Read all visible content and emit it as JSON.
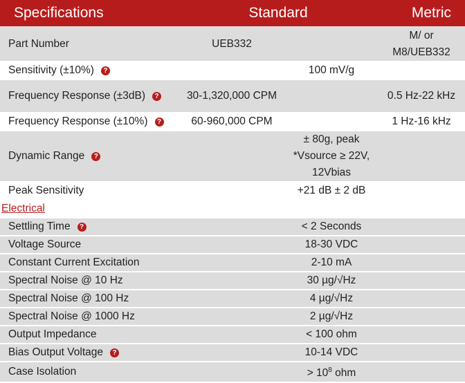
{
  "header": {
    "specifications": "Specifications",
    "standard": "Standard",
    "metric": "Metric"
  },
  "rows": {
    "part_number": {
      "label": "Part Number",
      "standard": "UEB332",
      "metric": "M/ or M8/UEB332"
    },
    "sensitivity": {
      "label": "Sensitivity (±10%)",
      "value": "100 mV/g",
      "help_icon": "question-circle-icon"
    },
    "freq_3db": {
      "label": "Frequency Response (±3dB)",
      "standard": "30-1,320,000 CPM",
      "metric": "0.5 Hz-22 kHz",
      "help_icon": "question-circle-icon"
    },
    "freq_10": {
      "label": "Frequency Response (±10%)",
      "standard": "60-960,000 CPM",
      "metric": "1 Hz-16 kHz",
      "help_icon": "question-circle-icon"
    },
    "dynamic_range": {
      "label": "Dynamic Range",
      "value": "± 80g, peak *Vsource ≥ 22V, 12Vbias",
      "help_icon": "question-circle-icon"
    },
    "peak_sensitivity": {
      "label": "Peak Sensitivity",
      "value": "+21 dB ± 2 dB"
    }
  },
  "section": {
    "electrical": "Electrical"
  },
  "electrical_rows": {
    "settling_time": {
      "label": "Settling Time",
      "value": "< 2 Seconds",
      "help_icon": "question-circle-icon"
    },
    "voltage_source": {
      "label": "Voltage Source",
      "value": "18-30 VDC"
    },
    "constant_current": {
      "label": "Constant Current Excitation",
      "value": "2-10 mA"
    },
    "noise_10": {
      "label": "Spectral Noise @ 10 Hz",
      "value": "30 µg/√Hz"
    },
    "noise_100": {
      "label": "Spectral Noise @ 100 Hz",
      "value": "4 µg/√Hz"
    },
    "noise_1000": {
      "label": "Spectral Noise @ 1000 Hz",
      "value": "2 µg/√Hz"
    },
    "output_impedance": {
      "label": "Output Impedance",
      "value": "< 100 ohm"
    },
    "bias_output": {
      "label": "Bias Output Voltage",
      "value": "10-14 VDC",
      "help_icon": "question-circle-icon"
    },
    "case_isolation": {
      "label": "Case Isolation",
      "value_prefix": "> 10",
      "value_exp": "8",
      "value_suffix": " ohm"
    }
  },
  "colors": {
    "accent": "#b71c1c",
    "row_gray": "#dcdcdc"
  }
}
